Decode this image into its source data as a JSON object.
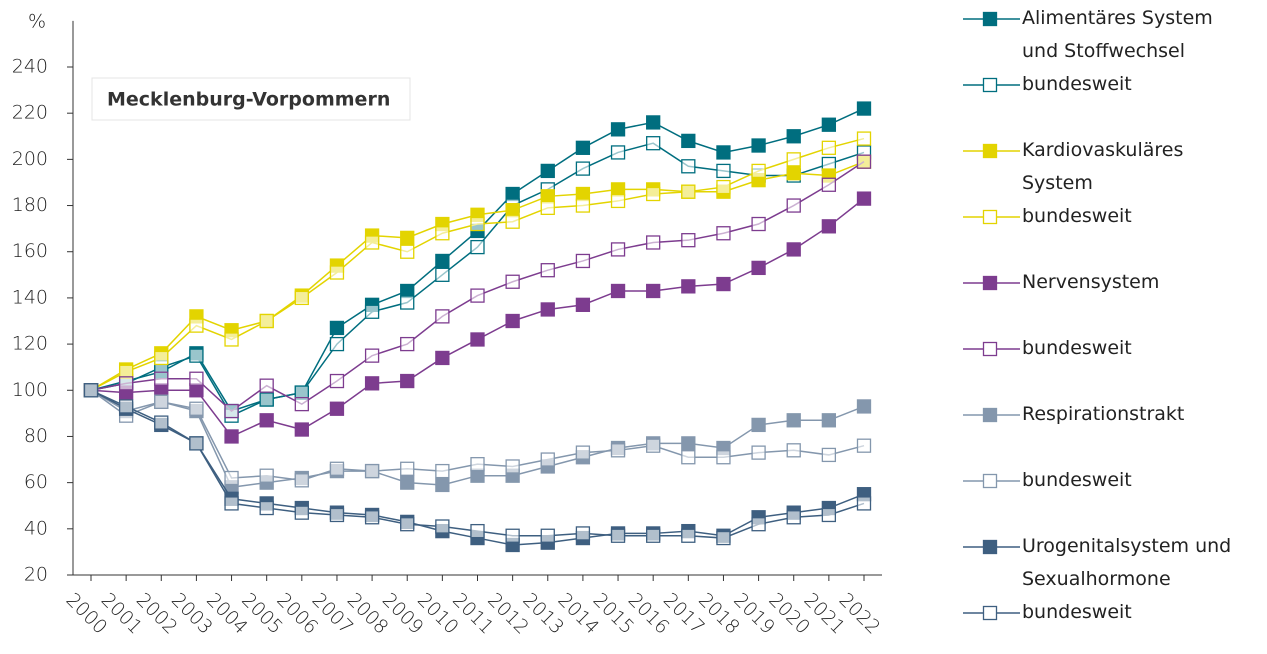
{
  "chart_data": {
    "type": "line",
    "y_unit": "%",
    "annotation": "Mecklenburg-Vorpommern",
    "x": [
      "2000",
      "2001",
      "2002",
      "2003",
      "2004",
      "2005",
      "2006",
      "2007",
      "2008",
      "2009",
      "2010",
      "2011",
      "2012",
      "2013",
      "2014",
      "2015",
      "2016",
      "2017",
      "2018",
      "2019",
      "2020",
      "2021",
      "2022"
    ],
    "ylim": [
      20,
      260
    ],
    "yticks": [
      20,
      40,
      60,
      80,
      100,
      120,
      140,
      160,
      180,
      200,
      220,
      240
    ],
    "grid": false,
    "legend": "right",
    "series": [
      {
        "name": "Alimentäres System und Stoffwechsel",
        "color": "#006e7f",
        "marker": "filled",
        "values": [
          100,
          104,
          108,
          116,
          91,
          96,
          99,
          127,
          137,
          143,
          156,
          169,
          185,
          195,
          205,
          213,
          216,
          208,
          203,
          206,
          210,
          215,
          222
        ]
      },
      {
        "name": "bundesweit",
        "color": "#006e7f",
        "marker": "open",
        "values": [
          100,
          103,
          110,
          115,
          89,
          96,
          99,
          120,
          134,
          138,
          150,
          162,
          180,
          187,
          196,
          203,
          207,
          197,
          195,
          193,
          193,
          198,
          203
        ]
      },
      {
        "name": "Kardiovaskuläres System",
        "color": "#e3d400",
        "marker": "filled",
        "values": [
          100,
          109,
          116,
          132,
          126,
          130,
          141,
          154,
          167,
          166,
          172,
          176,
          178,
          184,
          185,
          187,
          187,
          186,
          186,
          191,
          194,
          193,
          199
        ]
      },
      {
        "name": "bundesweit",
        "color": "#e3d400",
        "marker": "open",
        "values": [
          100,
          108,
          114,
          128,
          122,
          130,
          140,
          151,
          164,
          160,
          168,
          172,
          173,
          179,
          180,
          182,
          185,
          186,
          188,
          195,
          200,
          205,
          209
        ]
      },
      {
        "name": "Nervensystem",
        "color": "#7d3c8f",
        "marker": "filled",
        "values": [
          100,
          99,
          100,
          100,
          80,
          87,
          83,
          92,
          103,
          104,
          114,
          122,
          130,
          135,
          137,
          143,
          143,
          145,
          146,
          153,
          161,
          171,
          183
        ]
      },
      {
        "name": "bundesweit",
        "color": "#7d3c8f",
        "marker": "open",
        "values": [
          100,
          103,
          105,
          105,
          91,
          102,
          94,
          104,
          115,
          120,
          132,
          141,
          147,
          152,
          156,
          161,
          164,
          165,
          168,
          172,
          180,
          189,
          199
        ]
      },
      {
        "name": "Respirationstrakt",
        "color": "#8497ad",
        "marker": "filled",
        "values": [
          100,
          91,
          95,
          91,
          58,
          60,
          62,
          65,
          65,
          60,
          59,
          63,
          63,
          67,
          71,
          75,
          77,
          77,
          75,
          85,
          87,
          87,
          93
        ]
      },
      {
        "name": "bundesweit",
        "color": "#8497ad",
        "marker": "open",
        "values": [
          100,
          89,
          95,
          92,
          62,
          63,
          61,
          66,
          65,
          66,
          65,
          68,
          67,
          70,
          73,
          74,
          76,
          71,
          71,
          73,
          74,
          72,
          76
        ]
      },
      {
        "name": "Urogenitalsystem und Sexualhormone",
        "color": "#3e5f80",
        "marker": "filled",
        "values": [
          100,
          92,
          85,
          77,
          53,
          51,
          49,
          47,
          46,
          43,
          39,
          36,
          33,
          34,
          36,
          38,
          38,
          39,
          37,
          45,
          47,
          49,
          55
        ]
      },
      {
        "name": "bundesweit",
        "color": "#3e5f80",
        "marker": "open",
        "values": [
          100,
          93,
          86,
          77,
          51,
          49,
          47,
          46,
          45,
          42,
          41,
          39,
          37,
          37,
          38,
          37,
          37,
          37,
          36,
          42,
          45,
          46,
          51
        ]
      }
    ]
  }
}
